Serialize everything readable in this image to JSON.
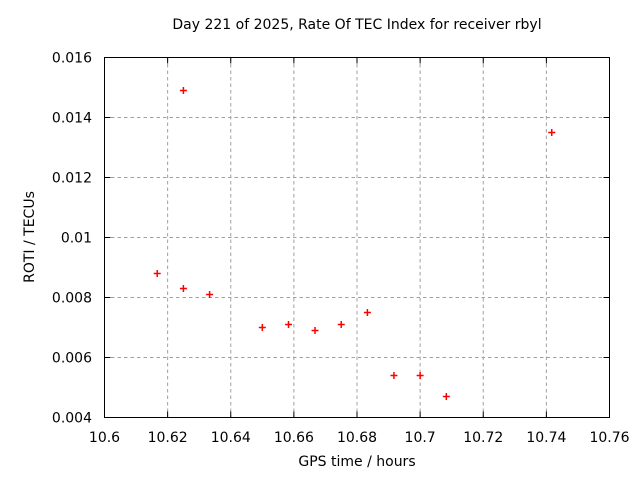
{
  "chart_data": {
    "type": "scatter",
    "title": "Day 221 of 2025, Rate Of TEC Index for receiver rbyl",
    "xlabel": "GPS time / hours",
    "ylabel": "ROTI / TECUs",
    "xlim": [
      10.6,
      10.76
    ],
    "ylim": [
      0.004,
      0.016
    ],
    "grid": true,
    "legend": "none",
    "marker": "plus",
    "colors": {
      "marker": "#ff0000",
      "grid": "#a0a0a0",
      "axis": "#000000",
      "background": "#ffffff"
    },
    "xticks": [
      {
        "v": 10.6,
        "label": "10.6"
      },
      {
        "v": 10.62,
        "label": "10.62"
      },
      {
        "v": 10.64,
        "label": "10.64"
      },
      {
        "v": 10.66,
        "label": "10.66"
      },
      {
        "v": 10.68,
        "label": "10.68"
      },
      {
        "v": 10.7,
        "label": "10.7"
      },
      {
        "v": 10.72,
        "label": "10.72"
      },
      {
        "v": 10.74,
        "label": "10.74"
      },
      {
        "v": 10.76,
        "label": "10.76"
      }
    ],
    "yticks": [
      {
        "v": 0.004,
        "label": "0.004"
      },
      {
        "v": 0.006,
        "label": "0.006"
      },
      {
        "v": 0.008,
        "label": "0.008"
      },
      {
        "v": 0.01,
        "label": "0.01"
      },
      {
        "v": 0.012,
        "label": "0.012"
      },
      {
        "v": 0.014,
        "label": "0.014"
      },
      {
        "v": 0.016,
        "label": "0.016"
      }
    ],
    "points": [
      {
        "x": 10.6167,
        "y": 0.0088
      },
      {
        "x": 10.625,
        "y": 0.0149
      },
      {
        "x": 10.625,
        "y": 0.0083
      },
      {
        "x": 10.6333,
        "y": 0.0081
      },
      {
        "x": 10.65,
        "y": 0.007
      },
      {
        "x": 10.6583,
        "y": 0.0071
      },
      {
        "x": 10.6667,
        "y": 0.0069
      },
      {
        "x": 10.675,
        "y": 0.0071
      },
      {
        "x": 10.6833,
        "y": 0.0075
      },
      {
        "x": 10.6917,
        "y": 0.0054
      },
      {
        "x": 10.7,
        "y": 0.0054
      },
      {
        "x": 10.7083,
        "y": 0.0047
      },
      {
        "x": 10.7417,
        "y": 0.0135
      }
    ]
  }
}
